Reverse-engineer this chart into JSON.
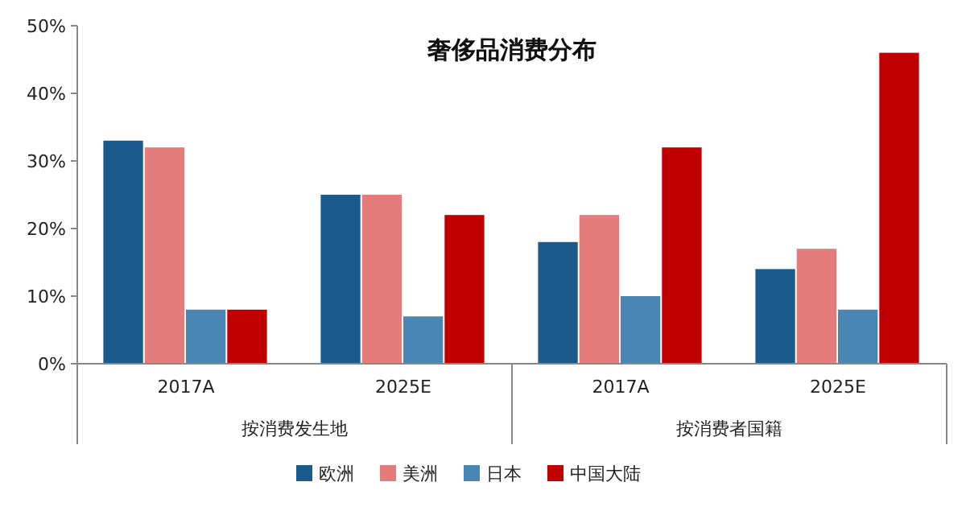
{
  "chart_data": {
    "type": "bar",
    "title": "奢侈品消费分布",
    "categories": [
      "2017A",
      "2025E",
      "2017A",
      "2025E"
    ],
    "series": [
      {
        "name": "欧洲",
        "color": "#1b5a8c",
        "values": [
          33,
          25,
          18,
          14
        ]
      },
      {
        "name": "美洲",
        "color": "#e57c7c",
        "values": [
          32,
          25,
          22,
          17
        ]
      },
      {
        "name": "日本",
        "color": "#4a86b4",
        "values": [
          8,
          7,
          10,
          8
        ]
      },
      {
        "name": "中国大陆",
        "color": "#c00000",
        "values": [
          8,
          22,
          32,
          46
        ]
      }
    ],
    "ylim": [
      0,
      50
    ],
    "yticks": [
      {
        "value": 0,
        "label": "0%"
      },
      {
        "value": 10,
        "label": "10%"
      },
      {
        "value": 20,
        "label": "20%"
      },
      {
        "value": 30,
        "label": "30%"
      },
      {
        "value": 40,
        "label": "40%"
      },
      {
        "value": 50,
        "label": "50%"
      }
    ],
    "legend": "bottom",
    "annotations": [
      "按消费发生地",
      "按消费者国籍"
    ]
  }
}
